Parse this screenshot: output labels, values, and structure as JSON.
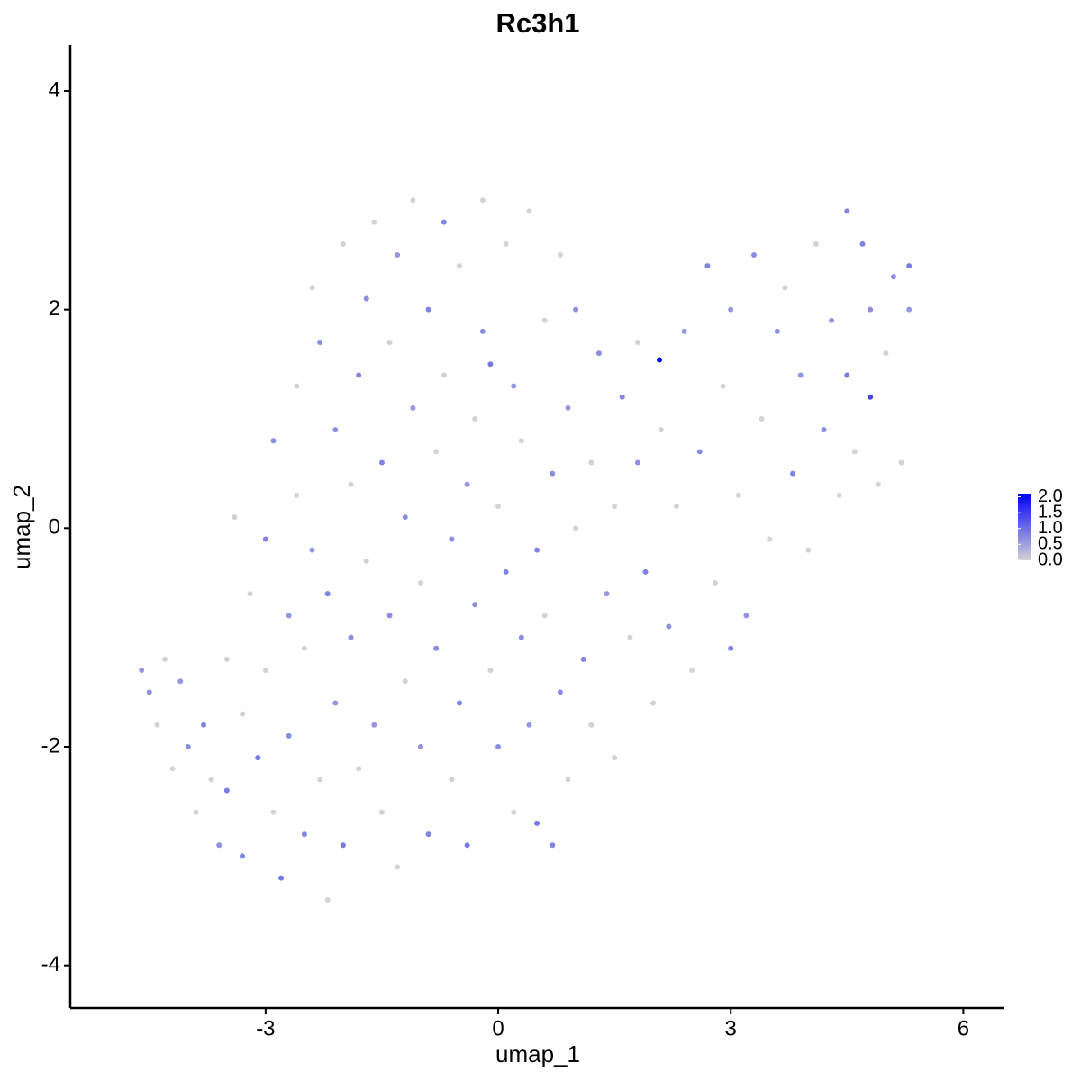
{
  "chart_data": {
    "type": "scatter",
    "title": "Rc3h1",
    "x_label": "umap_1",
    "y_label": "umap_2",
    "xlim": [
      -5.52,
      6.53
    ],
    "ylim": [
      -4.39,
      4.42
    ],
    "xticks": [
      -3,
      0,
      3,
      6
    ],
    "yticks": [
      -4,
      -2,
      0,
      2,
      4
    ],
    "color_low": "#d3d3d3",
    "color_high": "#0000ff",
    "legend_lim": [
      0,
      2.1
    ],
    "legend_ticks": [
      {
        "value": 0,
        "label": "0.0"
      },
      {
        "value": 0.5,
        "label": "0.5"
      },
      {
        "value": 1,
        "label": "1.0"
      },
      {
        "value": 1.5,
        "label": "1.5"
      },
      {
        "value": 2,
        "label": "2.0"
      }
    ],
    "x": [
      -4.6,
      -4.5,
      -4.4,
      -4.2,
      -4.1,
      -4.0,
      -3.9,
      -3.8,
      -3.7,
      -3.6,
      -3.5,
      -3.5,
      -3.3,
      -3.3,
      -3.2,
      -3.1,
      -3.0,
      -3.0,
      -2.9,
      -2.9,
      -2.8,
      -2.7,
      -2.7,
      -2.6,
      -2.6,
      -2.5,
      -2.5,
      -2.4,
      -2.4,
      -2.3,
      -2.3,
      -2.2,
      -2.2,
      -2.1,
      -2.1,
      -2.0,
      -2.0,
      -1.9,
      -1.9,
      -1.8,
      -1.8,
      -1.7,
      -1.7,
      -1.6,
      -1.6,
      -1.5,
      -1.5,
      -1.4,
      -1.4,
      -1.3,
      -1.3,
      -1.2,
      -1.2,
      -1.1,
      -1.1,
      -1.0,
      -1.0,
      -0.9,
      -0.9,
      -0.8,
      -0.8,
      -0.7,
      -0.7,
      -0.6,
      -0.6,
      -0.5,
      -0.5,
      -0.4,
      -0.4,
      -0.3,
      -0.3,
      -0.2,
      -0.2,
      -0.1,
      -0.1,
      0.0,
      0.0,
      0.1,
      0.1,
      0.2,
      0.2,
      0.3,
      0.3,
      0.4,
      0.4,
      0.5,
      0.5,
      0.6,
      0.6,
      0.7,
      0.7,
      0.8,
      0.8,
      0.9,
      0.9,
      1.0,
      1.0,
      1.1,
      1.2,
      1.2,
      1.3,
      1.4,
      1.5,
      1.5,
      1.6,
      1.7,
      1.8,
      1.8,
      1.9,
      2.0,
      2.08,
      2.1,
      2.2,
      2.3,
      2.4,
      2.5,
      2.6,
      2.7,
      2.8,
      2.9,
      3.0,
      3.0,
      3.1,
      3.2,
      3.3,
      3.4,
      3.5,
      3.6,
      3.7,
      3.8,
      3.9,
      4.0,
      4.1,
      4.2,
      4.3,
      4.4,
      4.5,
      4.5,
      4.6,
      4.7,
      4.8,
      4.8,
      4.9,
      5.0,
      5.1,
      5.2,
      5.3,
      5.3,
      -4.3,
      -3.4
    ],
    "y": [
      -1.3,
      -1.5,
      -1.8,
      -2.2,
      -1.4,
      -2.0,
      -2.6,
      -1.8,
      -2.3,
      -2.9,
      -1.2,
      -2.4,
      -1.7,
      -3.0,
      -0.6,
      -2.1,
      -0.1,
      -1.3,
      -2.6,
      0.8,
      -3.2,
      -0.8,
      -1.9,
      0.3,
      1.3,
      -2.8,
      -1.1,
      -0.2,
      2.2,
      1.7,
      -2.3,
      -3.4,
      -0.6,
      0.9,
      -1.6,
      2.6,
      -2.9,
      0.4,
      -1.0,
      1.4,
      -2.2,
      2.1,
      -0.3,
      2.8,
      -1.8,
      0.6,
      -2.6,
      1.7,
      -0.8,
      2.5,
      -3.1,
      0.1,
      -1.4,
      1.1,
      3.0,
      -2.0,
      -0.5,
      2.0,
      -2.8,
      0.7,
      -1.1,
      2.8,
      1.4,
      -0.1,
      -2.3,
      -1.6,
      2.4,
      0.4,
      -2.9,
      1.0,
      -0.7,
      3.0,
      1.8,
      -1.3,
      1.5,
      -2.0,
      0.2,
      -0.4,
      2.6,
      1.3,
      -2.6,
      -1.0,
      0.8,
      -1.8,
      2.9,
      -0.2,
      -2.7,
      1.9,
      -0.8,
      0.5,
      -2.9,
      2.5,
      -1.5,
      1.1,
      -2.3,
      0.0,
      2.0,
      -1.2,
      0.6,
      -1.8,
      1.6,
      -0.6,
      0.2,
      -2.1,
      1.2,
      -1.0,
      0.6,
      1.7,
      -0.4,
      -1.6,
      1.54,
      0.9,
      -0.9,
      0.2,
      1.8,
      -1.3,
      0.7,
      2.4,
      -0.5,
      1.3,
      -1.1,
      2.0,
      0.3,
      -0.8,
      2.5,
      1.0,
      -0.1,
      1.8,
      2.2,
      0.5,
      1.4,
      -0.2,
      2.6,
      0.9,
      1.9,
      0.3,
      2.9,
      1.4,
      0.7,
      2.6,
      1.2,
      2.0,
      0.4,
      1.6,
      2.3,
      0.6,
      2.4,
      2.0,
      -1.2,
      0.1
    ],
    "values": [
      0.6,
      0.7,
      0,
      0,
      0.6,
      0.7,
      0,
      0.8,
      0,
      0.7,
      0,
      0.9,
      0,
      0.8,
      0,
      0.9,
      0.8,
      0,
      0,
      0.7,
      0.9,
      0.6,
      0.7,
      0,
      0,
      0.8,
      0,
      0.6,
      0,
      0.7,
      0,
      0,
      0.8,
      0.7,
      0.6,
      0,
      0.9,
      0,
      0.7,
      0.8,
      0,
      0.7,
      0,
      0,
      0.6,
      0.8,
      0,
      0,
      0.7,
      0.6,
      0,
      0.7,
      0,
      0.6,
      0,
      0.7,
      0,
      0.8,
      0.8,
      0,
      0.7,
      0.8,
      0,
      0.7,
      0,
      0.8,
      0,
      0.6,
      0.9,
      0,
      0.7,
      0,
      0.7,
      0,
      0.9,
      0.7,
      0,
      0.8,
      0,
      0.6,
      0,
      0.7,
      0,
      0.6,
      0,
      0.8,
      0.9,
      0,
      0,
      0.7,
      0.8,
      0,
      0.7,
      0.6,
      0,
      0,
      0.7,
      0.8,
      0,
      0,
      0.7,
      0.6,
      0,
      0,
      0.8,
      0,
      0.7,
      0,
      0.8,
      0,
      2.1,
      0,
      0.7,
      0,
      0.6,
      0,
      0.7,
      0.8,
      0,
      0,
      0.8,
      0.6,
      0,
      0.6,
      0.7,
      0,
      0,
      0.7,
      0,
      0.8,
      0.6,
      0,
      0,
      0.7,
      0.6,
      0,
      0.8,
      0.9,
      0,
      0.8,
      1.4,
      0.7,
      0,
      0,
      0.7,
      0,
      0.9,
      0.6,
      0,
      0
    ]
  }
}
